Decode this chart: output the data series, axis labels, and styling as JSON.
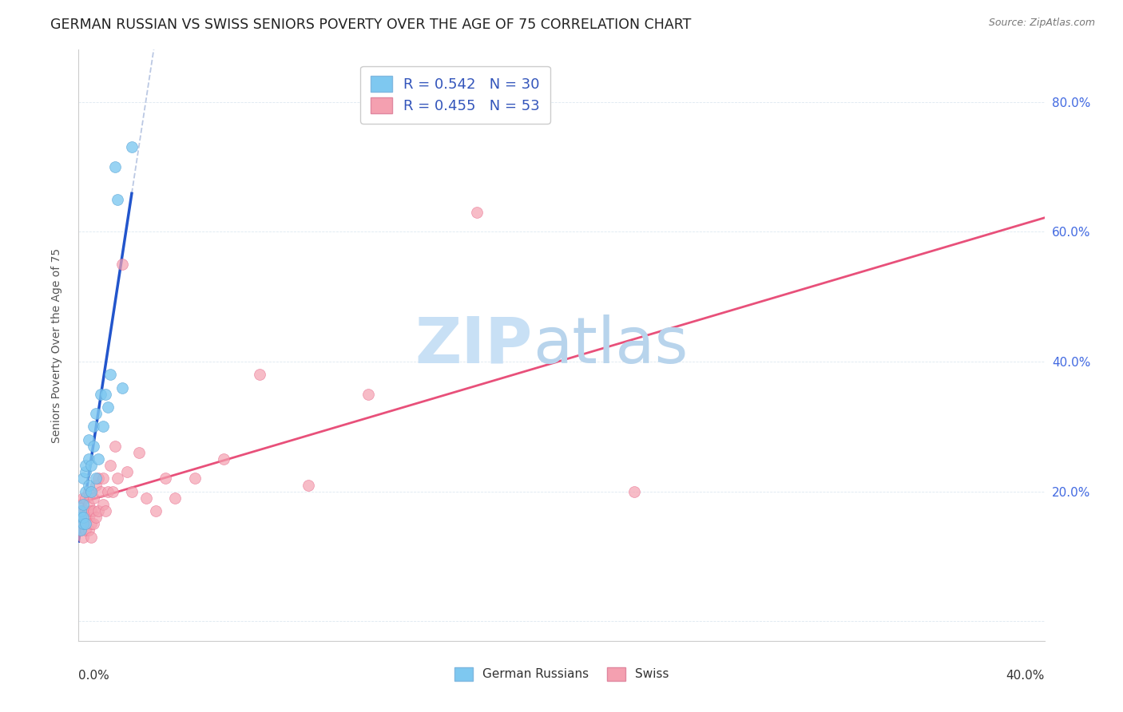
{
  "title": "GERMAN RUSSIAN VS SWISS SENIORS POVERTY OVER THE AGE OF 75 CORRELATION CHART",
  "source": "Source: ZipAtlas.com",
  "ylabel": "Seniors Poverty Over the Age of 75",
  "xlim": [
    0.0,
    0.4
  ],
  "ylim": [
    -0.03,
    0.88
  ],
  "gr_color": "#7EC8F0",
  "swiss_color": "#F4A0B0",
  "gr_line_color": "#2255CC",
  "gr_dash_color": "#AABBDD",
  "swiss_line_color": "#E8507A",
  "background_color": "#FFFFFF",
  "grid_color": "#DDE8F0",
  "title_fontsize": 12.5,
  "axis_fontsize": 11,
  "marker_size": 100,
  "german_russian_x": [
    0.001,
    0.001,
    0.001,
    0.002,
    0.002,
    0.002,
    0.002,
    0.003,
    0.003,
    0.003,
    0.003,
    0.004,
    0.004,
    0.004,
    0.005,
    0.005,
    0.006,
    0.006,
    0.007,
    0.007,
    0.008,
    0.009,
    0.01,
    0.011,
    0.012,
    0.013,
    0.015,
    0.016,
    0.018,
    0.022
  ],
  "german_russian_y": [
    0.16,
    0.14,
    0.17,
    0.15,
    0.16,
    0.18,
    0.22,
    0.2,
    0.23,
    0.15,
    0.24,
    0.21,
    0.25,
    0.28,
    0.2,
    0.24,
    0.3,
    0.27,
    0.32,
    0.22,
    0.25,
    0.35,
    0.3,
    0.35,
    0.33,
    0.38,
    0.7,
    0.65,
    0.36,
    0.73
  ],
  "swiss_x": [
    0.001,
    0.001,
    0.001,
    0.001,
    0.002,
    0.002,
    0.002,
    0.002,
    0.002,
    0.003,
    0.003,
    0.003,
    0.003,
    0.003,
    0.004,
    0.004,
    0.004,
    0.004,
    0.005,
    0.005,
    0.005,
    0.005,
    0.006,
    0.006,
    0.006,
    0.007,
    0.007,
    0.008,
    0.008,
    0.009,
    0.01,
    0.01,
    0.011,
    0.012,
    0.013,
    0.014,
    0.015,
    0.016,
    0.018,
    0.02,
    0.022,
    0.025,
    0.028,
    0.032,
    0.036,
    0.04,
    0.048,
    0.06,
    0.075,
    0.095,
    0.12,
    0.165,
    0.23
  ],
  "swiss_y": [
    0.16,
    0.14,
    0.15,
    0.18,
    0.13,
    0.16,
    0.15,
    0.17,
    0.19,
    0.15,
    0.16,
    0.14,
    0.17,
    0.19,
    0.14,
    0.16,
    0.18,
    0.2,
    0.15,
    0.17,
    0.13,
    0.2,
    0.15,
    0.17,
    0.19,
    0.16,
    0.21,
    0.17,
    0.22,
    0.2,
    0.18,
    0.22,
    0.17,
    0.2,
    0.24,
    0.2,
    0.27,
    0.22,
    0.55,
    0.23,
    0.2,
    0.26,
    0.19,
    0.17,
    0.22,
    0.19,
    0.22,
    0.25,
    0.38,
    0.21,
    0.35,
    0.63,
    0.2
  ],
  "legend_label_gr": "R = 0.542   N = 30",
  "legend_label_sw": "R = 0.455   N = 53",
  "bottom_label_gr": "German Russians",
  "bottom_label_sw": "Swiss"
}
